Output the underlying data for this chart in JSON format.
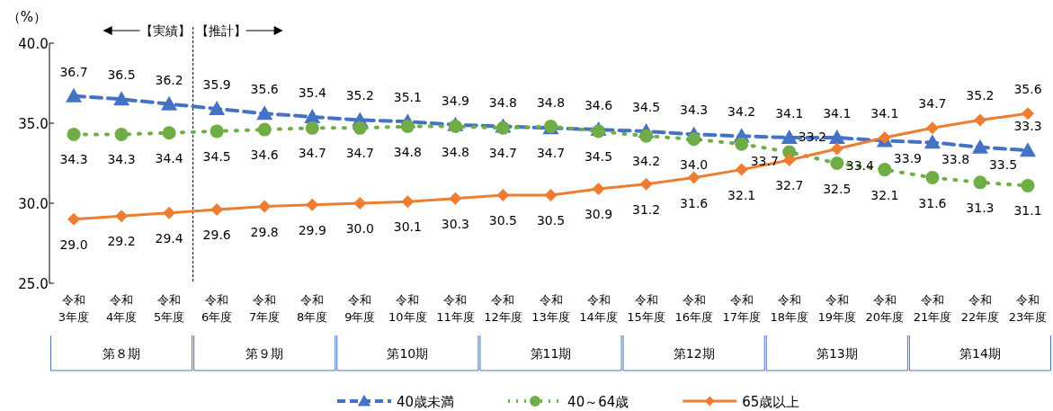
{
  "chart_data": {
    "type": "line",
    "ylabel": "（%）",
    "categories": [
      "令和\n3年度",
      "令和\n4年度",
      "令和\n5年度",
      "令和\n6年度",
      "令和\n7年度",
      "令和\n8年度",
      "令和\n9年度",
      "令和\n10年度",
      "令和\n11年度",
      "令和\n12年度",
      "令和\n13年度",
      "令和\n14年度",
      "令和\n15年度",
      "令和\n16年度",
      "令和\n17年度",
      "令和\n18年度",
      "令和\n19年度",
      "令和\n20年度",
      "令和\n21年度",
      "令和\n22年度",
      "令和\n23年度"
    ],
    "series": [
      {
        "name": "40歳未満",
        "color": "#4472c4",
        "marker": "triangle",
        "line_style": "dashed",
        "values": [
          36.7,
          36.5,
          36.2,
          35.9,
          35.6,
          35.4,
          35.2,
          35.1,
          34.9,
          34.8,
          34.7,
          34.6,
          34.5,
          34.3,
          34.2,
          34.1,
          34.1,
          33.9,
          33.8,
          33.5,
          33.3
        ],
        "value_labels": [
          "36.7",
          "36.5",
          "36.2",
          "35.9",
          "35.6",
          "35.4",
          "35.2",
          "35.1",
          "34.9",
          "34.8",
          "34.7",
          "34.6",
          "34.5",
          "34.3",
          "34.2",
          "34.1",
          "34.1",
          "33.9",
          "33.8",
          "33.5",
          "33.3"
        ]
      },
      {
        "name": "40～64歳",
        "color": "#70ad47",
        "marker": "circle",
        "line_style": "dotted",
        "values": [
          34.3,
          34.3,
          34.4,
          34.5,
          34.6,
          34.7,
          34.7,
          34.8,
          34.8,
          34.7,
          34.8,
          34.5,
          34.2,
          34.0,
          33.7,
          33.2,
          32.5,
          32.1,
          31.6,
          31.3,
          31.1
        ],
        "value_labels": [
          "34.3",
          "34.3",
          "34.4",
          "34.5",
          "34.6",
          "34.7",
          "34.7",
          "34.8",
          "34.8",
          "34.7",
          "34.8",
          "34.5",
          "34.2",
          "34.0",
          "33.7",
          "33.2",
          "32.5",
          "32.1",
          "31.6",
          "31.3",
          "31.1"
        ]
      },
      {
        "name": "65歳以上",
        "color": "#ed7d31",
        "marker": "diamond",
        "line_style": "solid",
        "values": [
          29.0,
          29.2,
          29.4,
          29.6,
          29.8,
          29.9,
          30.0,
          30.1,
          30.3,
          30.5,
          30.5,
          30.9,
          31.2,
          31.6,
          32.1,
          32.7,
          33.4,
          34.1,
          34.7,
          35.2,
          35.6
        ],
        "value_labels": [
          "29.0",
          "29.2",
          "29.4",
          "29.6",
          "29.8",
          "29.9",
          "30.0",
          "30.1",
          "30.3",
          "30.5",
          "30.5",
          "30.9",
          "31.2",
          "31.6",
          "32.1",
          "32.7",
          "33.4",
          "34.1",
          "34.7",
          "35.2",
          "35.6"
        ]
      }
    ],
    "ylim": [
      25,
      40
    ],
    "yticks": [
      {
        "value": 25,
        "label": "25.0"
      },
      {
        "value": 30,
        "label": "30.0"
      },
      {
        "value": 35,
        "label": "35.0"
      },
      {
        "value": 40,
        "label": "40.0"
      }
    ],
    "grid": false,
    "legend": "bottom",
    "annotations": [
      "【実績】",
      "【推計】",
      "第８期",
      "第９期",
      "第10期",
      "第11期",
      "第12期",
      "第13期",
      "第14期"
    ]
  }
}
